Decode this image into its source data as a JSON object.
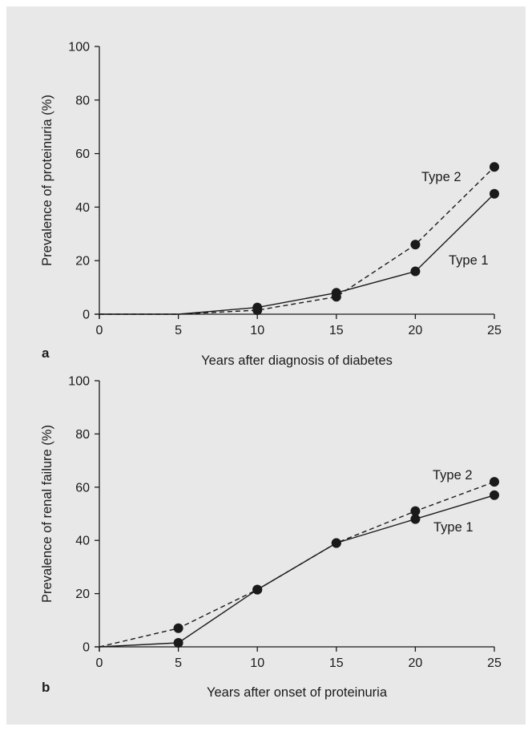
{
  "chart_data": [
    {
      "type": "line",
      "panel_label": "a",
      "xlabel": "Years after diagnosis of diabetes",
      "ylabel": "Prevalence of proteinuria (%)",
      "xlim": [
        0,
        25
      ],
      "ylim": [
        0,
        100
      ],
      "xticks": [
        0,
        5,
        10,
        15,
        20,
        25
      ],
      "yticks": [
        0,
        20,
        40,
        60,
        80,
        100
      ],
      "grid": false,
      "series": [
        {
          "name": "Type 1",
          "style": "solid",
          "x": [
            0,
            5,
            10,
            15,
            20,
            25
          ],
          "y": [
            0,
            0,
            2.5,
            8,
            16,
            45
          ],
          "markers": [
            false,
            false,
            true,
            true,
            true,
            true
          ]
        },
        {
          "name": "Type 2",
          "style": "dashed",
          "x": [
            0,
            5,
            10,
            15,
            20,
            25
          ],
          "y": [
            0,
            0,
            1.5,
            6.5,
            26,
            55
          ],
          "markers": [
            false,
            false,
            true,
            true,
            true,
            true
          ]
        }
      ]
    },
    {
      "type": "line",
      "panel_label": "b",
      "xlabel": "Years after onset of proteinuria",
      "ylabel": "Prevalence of renal failure (%)",
      "xlim": [
        0,
        25
      ],
      "ylim": [
        0,
        100
      ],
      "xticks": [
        0,
        5,
        10,
        15,
        20,
        25
      ],
      "yticks": [
        0,
        20,
        40,
        60,
        80,
        100
      ],
      "grid": false,
      "series": [
        {
          "name": "Type 1",
          "style": "solid",
          "x": [
            0,
            5,
            10,
            15,
            20,
            25
          ],
          "y": [
            0,
            1.5,
            21.5,
            39,
            48,
            57
          ],
          "markers": [
            false,
            true,
            true,
            true,
            true,
            true
          ]
        },
        {
          "name": "Type 2",
          "style": "dashed",
          "x": [
            0,
            5,
            10,
            15,
            20,
            25
          ],
          "y": [
            0,
            7,
            21.5,
            39,
            51,
            62
          ],
          "markers": [
            false,
            true,
            true,
            true,
            true,
            true
          ]
        }
      ]
    }
  ]
}
